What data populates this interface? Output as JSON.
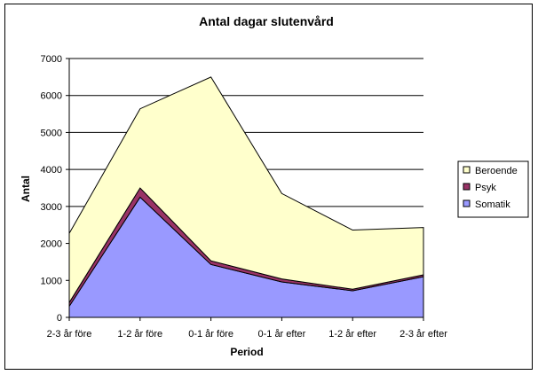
{
  "chart_data": {
    "type": "area",
    "stacked": true,
    "title": "Antal dagar slutenvård",
    "xlabel": "Period",
    "ylabel": "Antal",
    "categories": [
      "2-3 år före",
      "1-2 år före",
      "0-1 år före",
      "0-1 år efter",
      "1-2 år efter",
      "2-3 år efter"
    ],
    "ylim": [
      0,
      7000
    ],
    "yticks": [
      "0",
      "1000",
      "2000",
      "3000",
      "4000",
      "5000",
      "6000",
      "7000"
    ],
    "grid": true,
    "legend_position": "right",
    "series": [
      {
        "name": "Somatik",
        "color": "#9999ff",
        "values": [
          300,
          3250,
          1430,
          960,
          720,
          1100
        ]
      },
      {
        "name": "Psyk",
        "color": "#993366",
        "values": [
          100,
          250,
          100,
          80,
          40,
          50
        ]
      },
      {
        "name": "Beroende",
        "color": "#ffffcc",
        "values": [
          1870,
          2140,
          4970,
          2310,
          1600,
          1280
        ]
      }
    ],
    "plot_background": "#ffffff"
  }
}
